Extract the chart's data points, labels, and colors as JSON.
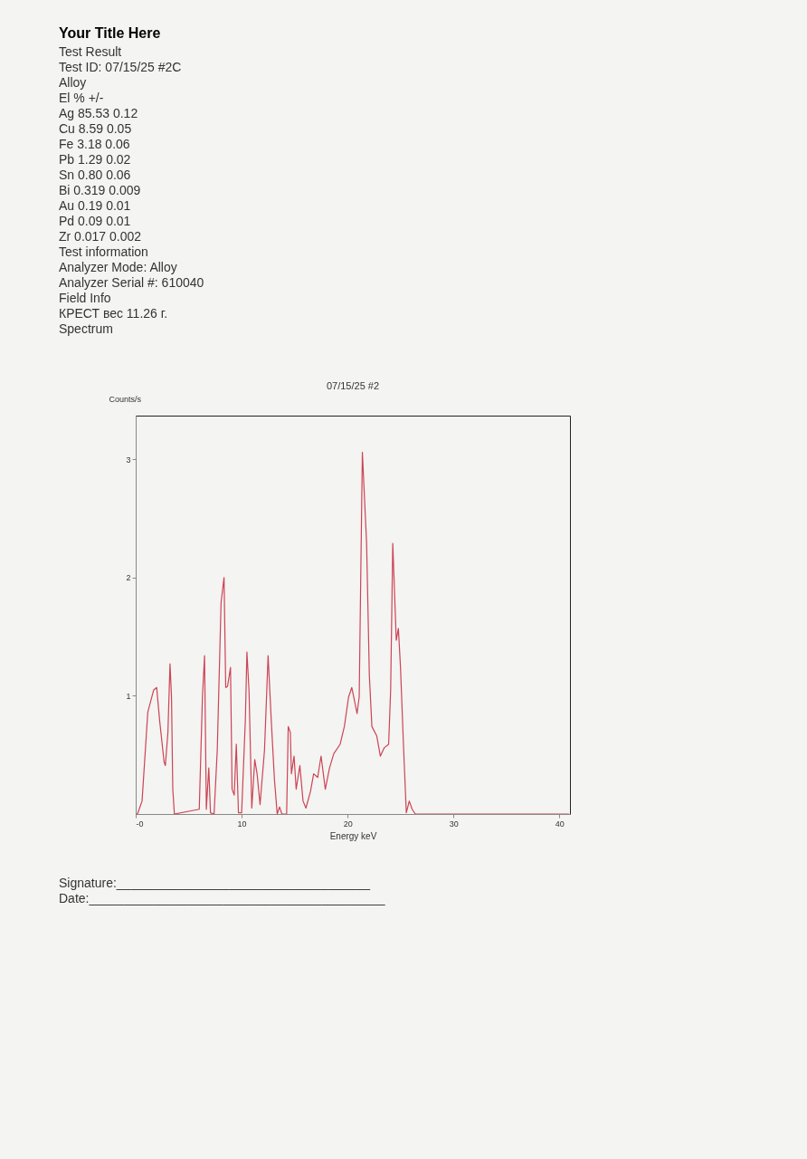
{
  "chart_data": [
    {
      "type": "other",
      "title": "Your Title Here",
      "annotations": [
        "Test Result",
        "Test ID: 07/15/25 #2C",
        "Alloy",
        "El % +/-",
        "Ag 85.53 0.12",
        "Cu 8.59 0.05",
        "Fe 3.18 0.06",
        "Pb 1.29 0.02",
        "Sn 0.80 0.06",
        "Bi 0.319 0.009",
        "Au 0.19 0.01",
        "Pd 0.09 0.01",
        "Zr 0.017 0.002",
        "Test information",
        "Analyzer Mode: Alloy",
        "Analyzer Serial #: 610040",
        "Field Info",
        "КРЕСТ вес 11.26 г.",
        "Spectrum"
      ]
    },
    {
      "type": "line",
      "title": "07/15/25 #2",
      "xlabel": "Energy keV",
      "ylabel": "Counts/s",
      "xlim": [
        0,
        41
      ],
      "ylim": [
        0,
        3.37
      ],
      "xticks": [
        {
          "value": 0,
          "label": "-0"
        },
        10,
        20,
        30,
        40
      ],
      "yticks": [
        1,
        2,
        3
      ],
      "series": [
        {
          "color": "#cc4455",
          "x": [
            0,
            0.17,
            0.6,
            1.14,
            1.7,
            1.98,
            2.26,
            2.68,
            2.8,
            3.04,
            3.24,
            3.38,
            3.5,
            3.65,
            6.0,
            6.3,
            6.5,
            6.67,
            6.9,
            7.06,
            7.4,
            7.7,
            8.06,
            8.34,
            8.5,
            8.67,
            8.95,
            9.1,
            9.3,
            9.5,
            9.7,
            10.0,
            10.35,
            10.5,
            10.7,
            10.96,
            11.24,
            11.46,
            11.74,
            12.16,
            12.5,
            12.8,
            13.1,
            13.36,
            13.58,
            13.8,
            14.25,
            14.4,
            14.6,
            14.7,
            14.95,
            15.15,
            15.5,
            15.8,
            16.07,
            16.5,
            16.8,
            17.18,
            17.5,
            17.9,
            18.3,
            18.7,
            19.3,
            19.7,
            20.1,
            20.4,
            20.7,
            20.9,
            21.1,
            21.4,
            21.8,
            22.06,
            22.3,
            22.76,
            23.1,
            23.46,
            23.88,
            24.07,
            24.27,
            24.6,
            24.8,
            25.0,
            25.3,
            25.55,
            25.83,
            26.1,
            26.4,
            40.9
          ],
          "values": [
            0,
            0,
            0.11,
            0.86,
            1.05,
            1.07,
            0.79,
            0.44,
            0.41,
            0.69,
            1.27,
            0.99,
            0.21,
            0,
            0.04,
            0.99,
            1.34,
            0.04,
            0.39,
            0.01,
            0,
            0.54,
            1.79,
            2.0,
            1.07,
            1.08,
            1.24,
            0.21,
            0.16,
            0.59,
            0.01,
            0.01,
            0.79,
            1.37,
            1.04,
            0.05,
            0.46,
            0.34,
            0.08,
            0.54,
            1.34,
            0.79,
            0.29,
            0,
            0.06,
            0,
            0,
            0.74,
            0.69,
            0.34,
            0.49,
            0.21,
            0.41,
            0.11,
            0.05,
            0.19,
            0.34,
            0.31,
            0.49,
            0.21,
            0.39,
            0.51,
            0.59,
            0.74,
            0.99,
            1.07,
            0.94,
            0.85,
            0.99,
            3.06,
            2.29,
            1.17,
            0.74,
            0.66,
            0.49,
            0.56,
            0.59,
            1.05,
            2.29,
            1.47,
            1.57,
            1.24,
            0.54,
            0.01,
            0.11,
            0.04,
            0,
            0
          ]
        }
      ]
    },
    {
      "type": "other",
      "annotations": [
        "Signature:____________________________________",
        "Date:__________________________________________"
      ]
    }
  ]
}
